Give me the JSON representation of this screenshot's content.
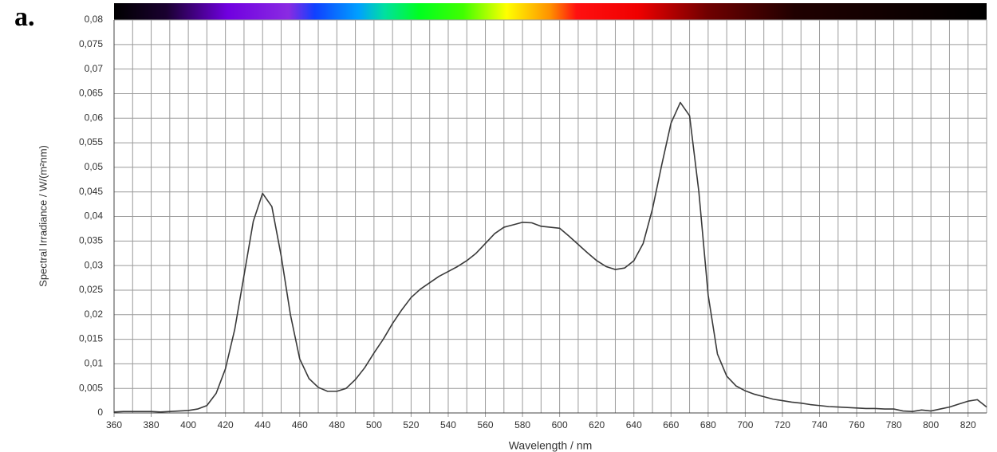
{
  "panel_label": "a.",
  "chart_data": {
    "type": "line",
    "xlabel": "Wavelength / nm",
    "ylabel": "Spectral Irradiance / W/(m²nm)",
    "xlim": [
      360,
      830
    ],
    "ylim": [
      0,
      0.08
    ],
    "xticks": [
      360,
      380,
      400,
      420,
      440,
      460,
      480,
      500,
      520,
      540,
      560,
      580,
      600,
      620,
      640,
      660,
      680,
      700,
      720,
      740,
      760,
      780,
      800,
      820
    ],
    "xminor_ticks": [
      370,
      390,
      410,
      430,
      450,
      470,
      490,
      510,
      530,
      550,
      570,
      590,
      610,
      630,
      650,
      670,
      690,
      710,
      730,
      750,
      770,
      790,
      810,
      830
    ],
    "yticks": [
      0,
      {
        "value": 0.005,
        "label": "0,005"
      },
      {
        "value": 0.01,
        "label": "0,01"
      },
      {
        "value": 0.015,
        "label": "0,015"
      },
      {
        "value": 0.02,
        "label": "0,02"
      },
      {
        "value": 0.025,
        "label": "0,025"
      },
      {
        "value": 0.03,
        "label": "0,03"
      },
      {
        "value": 0.035,
        "label": "0,035"
      },
      {
        "value": 0.04,
        "label": "0,04"
      },
      {
        "value": 0.045,
        "label": "0,045"
      },
      {
        "value": 0.05,
        "label": "0,05"
      },
      {
        "value": 0.055,
        "label": "0,055"
      },
      {
        "value": 0.06,
        "label": "0,06"
      },
      {
        "value": 0.065,
        "label": "0,065"
      },
      {
        "value": 0.07,
        "label": "0,07"
      },
      {
        "value": 0.075,
        "label": "0,075"
      },
      {
        "value": 0.08,
        "label": "0,08"
      }
    ],
    "grid": true,
    "series": [
      {
        "color": "#3a3a3a",
        "x": [
          360,
          365,
          370,
          375,
          380,
          385,
          390,
          395,
          400,
          405,
          410,
          415,
          420,
          425,
          430,
          435,
          440,
          445,
          450,
          455,
          460,
          465,
          470,
          475,
          480,
          485,
          490,
          495,
          500,
          505,
          510,
          515,
          520,
          525,
          530,
          535,
          540,
          545,
          550,
          555,
          560,
          565,
          570,
          575,
          580,
          585,
          590,
          595,
          600,
          605,
          610,
          615,
          620,
          625,
          630,
          635,
          640,
          645,
          650,
          655,
          660,
          665,
          670,
          675,
          680,
          685,
          690,
          695,
          700,
          705,
          710,
          715,
          720,
          725,
          730,
          735,
          740,
          745,
          750,
          755,
          760,
          765,
          770,
          775,
          780,
          785,
          790,
          795,
          800,
          805,
          810,
          815,
          820,
          825,
          830
        ],
        "values": [
          0.0002,
          0.0003,
          0.0003,
          0.0003,
          0.0003,
          0.0002,
          0.0003,
          0.0004,
          0.0005,
          0.0008,
          0.0015,
          0.004,
          0.009,
          0.017,
          0.028,
          0.039,
          0.0447,
          0.042,
          0.032,
          0.02,
          0.011,
          0.007,
          0.0052,
          0.0044,
          0.0044,
          0.005,
          0.0068,
          0.0092,
          0.0122,
          0.015,
          0.0182,
          0.021,
          0.0235,
          0.0252,
          0.0265,
          0.0278,
          0.0288,
          0.0298,
          0.031,
          0.0325,
          0.0345,
          0.0365,
          0.0378,
          0.0383,
          0.0388,
          0.0387,
          0.038,
          0.0378,
          0.0376,
          0.036,
          0.0343,
          0.0326,
          0.031,
          0.0298,
          0.0292,
          0.0295,
          0.031,
          0.0345,
          0.0415,
          0.0505,
          0.059,
          0.0632,
          0.0605,
          0.045,
          0.024,
          0.012,
          0.0075,
          0.0055,
          0.0045,
          0.0038,
          0.0033,
          0.0028,
          0.0025,
          0.0022,
          0.002,
          0.0017,
          0.0015,
          0.0013,
          0.0012,
          0.0011,
          0.001,
          0.0009,
          0.0009,
          0.0008,
          0.0008,
          0.0004,
          0.0003,
          0.0006,
          0.0004,
          0.0008,
          0.0012,
          0.0018,
          0.0024,
          0.0027,
          0.0012
        ]
      }
    ]
  }
}
